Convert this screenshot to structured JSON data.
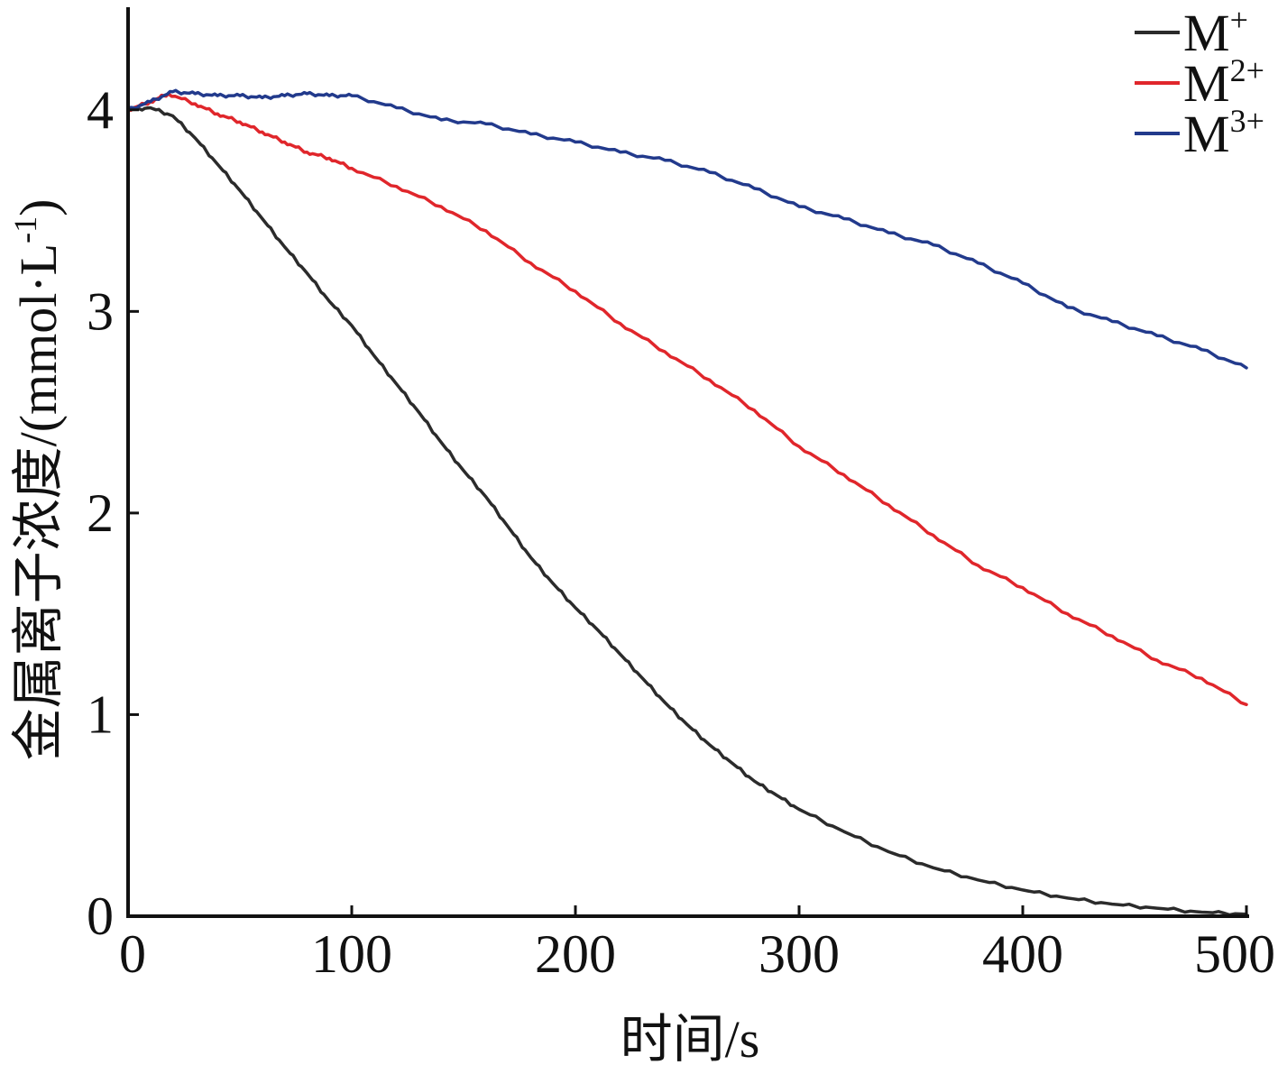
{
  "chart_data": {
    "type": "line",
    "title": "",
    "xlabel": "时间/s",
    "ylabel": "金属离子浓度/(mmol·L",
    "ylabel_sup": "-1",
    "ylabel_close": ")",
    "xlim": [
      0,
      500
    ],
    "ylim": [
      0,
      4.5
    ],
    "xticks": [
      0,
      100,
      200,
      300,
      400,
      500
    ],
    "xtick_labels": [
      "0",
      "100",
      "200",
      "300",
      "400",
      "500"
    ],
    "yticks": [
      0,
      1,
      2,
      3,
      4
    ],
    "ytick_labels": [
      "0",
      "1",
      "2",
      "3",
      "4"
    ],
    "grid": false,
    "legend_position": "top-right",
    "series": [
      {
        "name": "M",
        "name_sup": "+",
        "color": "#2b2b2b",
        "x": [
          0,
          10,
          20,
          30,
          40,
          50,
          60,
          70,
          80,
          90,
          100,
          110,
          120,
          130,
          140,
          150,
          160,
          170,
          180,
          190,
          200,
          210,
          220,
          230,
          240,
          250,
          260,
          270,
          280,
          290,
          300,
          320,
          340,
          360,
          380,
          400,
          420,
          440,
          460,
          480,
          500
        ],
        "y": [
          4.0,
          4.01,
          3.97,
          3.86,
          3.73,
          3.6,
          3.46,
          3.32,
          3.19,
          3.05,
          2.93,
          2.78,
          2.64,
          2.5,
          2.35,
          2.21,
          2.08,
          1.93,
          1.78,
          1.65,
          1.53,
          1.42,
          1.3,
          1.18,
          1.06,
          0.95,
          0.85,
          0.76,
          0.67,
          0.6,
          0.53,
          0.42,
          0.32,
          0.24,
          0.18,
          0.13,
          0.09,
          0.06,
          0.04,
          0.02,
          0.01
        ]
      },
      {
        "name": "M",
        "name_sup": "2+",
        "color": "#e0262b",
        "x": [
          0,
          10,
          18,
          30,
          40,
          50,
          60,
          70,
          80,
          90,
          100,
          120,
          140,
          160,
          180,
          200,
          220,
          240,
          260,
          280,
          300,
          320,
          340,
          360,
          380,
          400,
          420,
          440,
          460,
          480,
          500
        ],
        "y": [
          4.0,
          4.04,
          4.08,
          4.03,
          3.98,
          3.94,
          3.89,
          3.84,
          3.79,
          3.76,
          3.71,
          3.62,
          3.52,
          3.4,
          3.24,
          3.1,
          2.94,
          2.8,
          2.66,
          2.51,
          2.33,
          2.19,
          2.04,
          1.89,
          1.74,
          1.63,
          1.5,
          1.39,
          1.27,
          1.18,
          1.05
        ]
      },
      {
        "name": "M",
        "name_sup": "3+",
        "color": "#223a8c",
        "x": [
          0,
          10,
          20,
          30,
          40,
          50,
          60,
          70,
          80,
          90,
          100,
          120,
          140,
          160,
          180,
          200,
          220,
          240,
          260,
          280,
          300,
          320,
          340,
          360,
          380,
          400,
          420,
          440,
          460,
          480,
          500
        ],
        "y": [
          4.0,
          4.04,
          4.09,
          4.08,
          4.07,
          4.07,
          4.06,
          4.07,
          4.08,
          4.07,
          4.07,
          4.01,
          3.95,
          3.93,
          3.88,
          3.84,
          3.79,
          3.75,
          3.69,
          3.61,
          3.52,
          3.46,
          3.39,
          3.33,
          3.24,
          3.14,
          3.02,
          2.95,
          2.88,
          2.81,
          2.72
        ]
      }
    ]
  }
}
